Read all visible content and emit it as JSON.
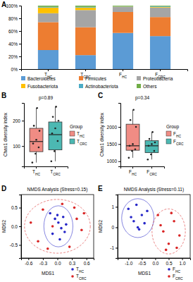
{
  "chart_data": [
    {
      "panel": "A",
      "type": "bar",
      "stacked": true,
      "legend": "bottom",
      "categories": [
        "THC",
        "TCRC",
        "FHC",
        "FCRC"
      ],
      "ylim": [
        0,
        100
      ],
      "yticks": [
        {
          "value": 0,
          "label": "0%"
        },
        {
          "value": 20,
          "label": "20%"
        },
        {
          "value": 40,
          "label": "40%"
        },
        {
          "value": 60,
          "label": "60%"
        },
        {
          "value": 80,
          "label": "80%"
        },
        {
          "value": 100,
          "label": "100%"
        }
      ],
      "series": [
        {
          "name": "Bacteroidetes",
          "color": "#5b9bd5",
          "values": [
            30,
            22,
            57,
            52
          ]
        },
        {
          "name": "Firmicutes",
          "color": "#ed7d31",
          "values": [
            44,
            44,
            33,
            30
          ]
        },
        {
          "name": "Proteobacteria",
          "color": "#a5a5a5",
          "values": [
            14,
            27,
            8,
            15
          ]
        },
        {
          "name": "Fusobacteriota",
          "color": "#ffc000",
          "values": [
            9,
            4,
            0.5,
            1
          ]
        },
        {
          "name": "Actinobacteriota",
          "color": "#4bacc6",
          "values": [
            1,
            1,
            0.5,
            1
          ]
        },
        {
          "name": "Others",
          "color": "#70ad47",
          "values": [
            2,
            2,
            1,
            1
          ]
        }
      ]
    },
    {
      "panel": "B",
      "type": "box",
      "y_label": "Chao1 diversity index",
      "annotation": "p=0.89",
      "legend": "right",
      "legend_title": "Group",
      "categories": [
        "THC",
        "TCRC"
      ],
      "ylim": [
        20,
        270
      ],
      "yticks": [
        100,
        200
      ],
      "series": [
        {
          "name": "THC",
          "color": "#f08c84",
          "min": 35,
          "q1": 78,
          "median": 118,
          "q3": 170,
          "max": 250,
          "points": [
            35,
            70,
            95,
            110,
            125,
            160,
            180,
            250
          ]
        },
        {
          "name": "TCRC",
          "color": "#4cb8b2",
          "min": 40,
          "q1": 85,
          "median": 145,
          "q3": 195,
          "max": 255,
          "points": [
            40,
            80,
            120,
            150,
            170,
            200,
            215,
            255
          ]
        }
      ]
    },
    {
      "panel": "C",
      "type": "box",
      "y_label": "Chao1 diversity index",
      "annotation": "p=0.34",
      "legend": "right",
      "legend_title": "Group",
      "categories": [
        "FHC",
        "FCRC"
      ],
      "ylim": [
        850,
        2700
      ],
      "yticks": [
        1000,
        1500,
        2000
      ],
      "series": [
        {
          "name": "FHC",
          "color": "#f08c84",
          "min": 1100,
          "q1": 1320,
          "median": 1450,
          "q3": 2080,
          "max": 2500,
          "points": [
            1100,
            1300,
            1350,
            1450,
            1500,
            2000,
            2200,
            2500
          ]
        },
        {
          "name": "FCRC",
          "color": "#4cb8b2",
          "min": 1050,
          "q1": 1250,
          "median": 1450,
          "q3": 1600,
          "max": 1850,
          "points": [
            1050,
            1200,
            1300,
            1450,
            1500,
            1550,
            1650,
            1850
          ]
        }
      ]
    },
    {
      "panel": "D",
      "type": "scatter",
      "title": "NMDS Analysis (Stress=0.15)",
      "x_label": "MDS1",
      "y_label": "MDS2",
      "legend": "bottom-right",
      "marker": "circle",
      "xlim": [
        -0.75,
        0.75
      ],
      "ylim": [
        -0.85,
        0.85
      ],
      "xticks": [
        -0.6,
        -0.3,
        {
          "value": 0,
          "label": "0.0"
        },
        0.3,
        0.6
      ],
      "yticks": [
        -0.5,
        {
          "value": 0,
          "label": "0.0"
        },
        0.5
      ],
      "series": [
        {
          "name": "THC",
          "color": "#2626c8",
          "line_style": "solid",
          "x": [
            -0.15,
            -0.05,
            0.02,
            0.08,
            0.12,
            0.18,
            -0.1,
            0.05,
            0.15,
            0.0
          ],
          "y": [
            0.35,
            0.2,
            0.1,
            -0.05,
            0.25,
            0.05,
            -0.2,
            -0.35,
            -0.15,
            0.3
          ],
          "ellipse": {
            "cx": 0.02,
            "cy": 0,
            "rx": 0.3,
            "ry": 0.55
          }
        },
        {
          "name": "TCRC",
          "color": "#d92424",
          "line_style": "dashed",
          "x": [
            -0.55,
            -0.4,
            -0.3,
            0.35,
            0.5,
            0.25,
            -0.2,
            0.1,
            0.4,
            -0.1,
            0.55
          ],
          "y": [
            0.1,
            -0.4,
            0.45,
            0.5,
            -0.1,
            -0.55,
            -0.6,
            0.6,
            0.2,
            0.0,
            0.35
          ],
          "ellipse": {
            "cx": 0,
            "cy": 0,
            "rx": 0.68,
            "ry": 0.72
          }
        }
      ]
    },
    {
      "panel": "E",
      "type": "scatter",
      "title": "NMDS Analysis (Stress=0.11)",
      "x_label": "MDS1",
      "y_label": "MDS2",
      "legend": "bottom-right",
      "marker": "circle",
      "xlim": [
        -1.4,
        1.3
      ],
      "ylim": [
        -1.5,
        1.6
      ],
      "xticks": [
        {
          "value": -1,
          "label": "-1.0"
        },
        -0.5,
        {
          "value": 0,
          "label": "0.0"
        },
        0.5,
        {
          "value": 1,
          "label": "1.0"
        }
      ],
      "yticks": [
        -1,
        0,
        1
      ],
      "series": [
        {
          "name": "FHC",
          "color": "#2626c8",
          "line_style": "solid",
          "x": [
            -1.0,
            -0.8,
            -0.7,
            -0.6,
            -0.5,
            -0.4,
            -0.3,
            -0.9,
            -0.65
          ],
          "y": [
            0.9,
            0.3,
            1.1,
            -0.1,
            0.6,
            0.2,
            0.8,
            0.5,
            0.0
          ],
          "ellipse": {
            "cx": -0.65,
            "cy": 0.45,
            "rx": 0.6,
            "ry": 0.95
          }
        },
        {
          "name": "FCRC",
          "color": "#d92424",
          "line_style": "dashed",
          "x": [
            0.1,
            0.3,
            0.5,
            0.7,
            0.9,
            0.4,
            0.2,
            0.6,
            0.8
          ],
          "y": [
            0.6,
            -0.2,
            -0.8,
            0.3,
            -0.4,
            -1.1,
            0.1,
            0.7,
            -1.0
          ],
          "ellipse": {
            "cx": 0.5,
            "cy": -0.2,
            "rx": 0.62,
            "ry": 1.1
          }
        }
      ]
    }
  ]
}
